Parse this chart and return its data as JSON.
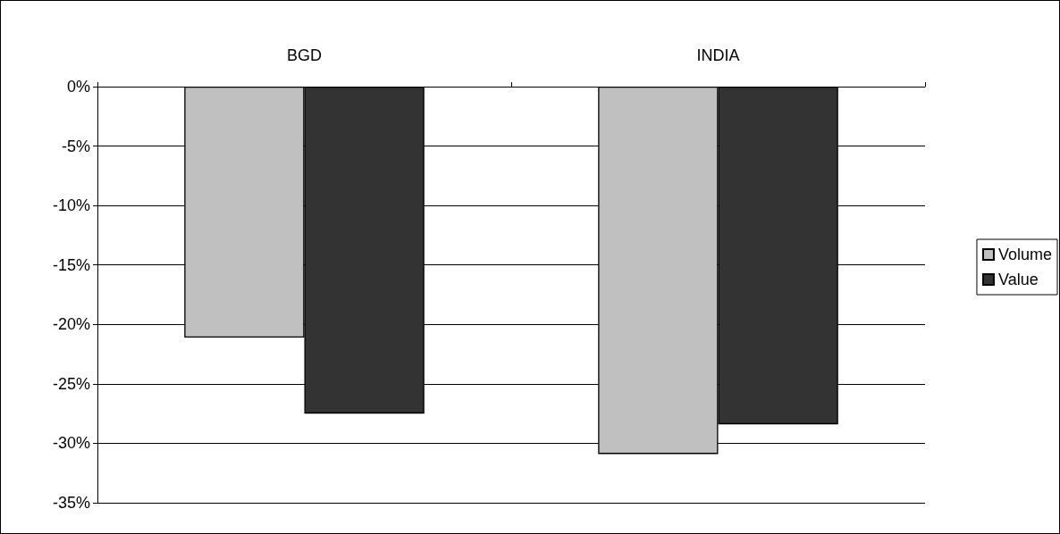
{
  "chart_data": {
    "type": "bar",
    "categories": [
      "BGD",
      "INDIA"
    ],
    "series": [
      {
        "name": "Volume",
        "color": "#c0c0c0",
        "values": [
          -21.1,
          -30.9
        ]
      },
      {
        "name": "Value",
        "color": "#333333",
        "values": [
          -27.5,
          -28.4
        ]
      }
    ],
    "ylim": [
      -35,
      0
    ],
    "yticks": [
      {
        "value": -35,
        "label": "-35%"
      },
      {
        "value": -30,
        "label": "-30%"
      },
      {
        "value": -25,
        "label": "-25%"
      },
      {
        "value": -20,
        "label": "-20%"
      },
      {
        "value": -15,
        "label": "-15%"
      },
      {
        "value": -10,
        "label": "-10%"
      },
      {
        "value": -5,
        "label": "-5%"
      },
      {
        "value": 0,
        "label": "0%"
      }
    ],
    "grid": "y",
    "legend": "right"
  }
}
